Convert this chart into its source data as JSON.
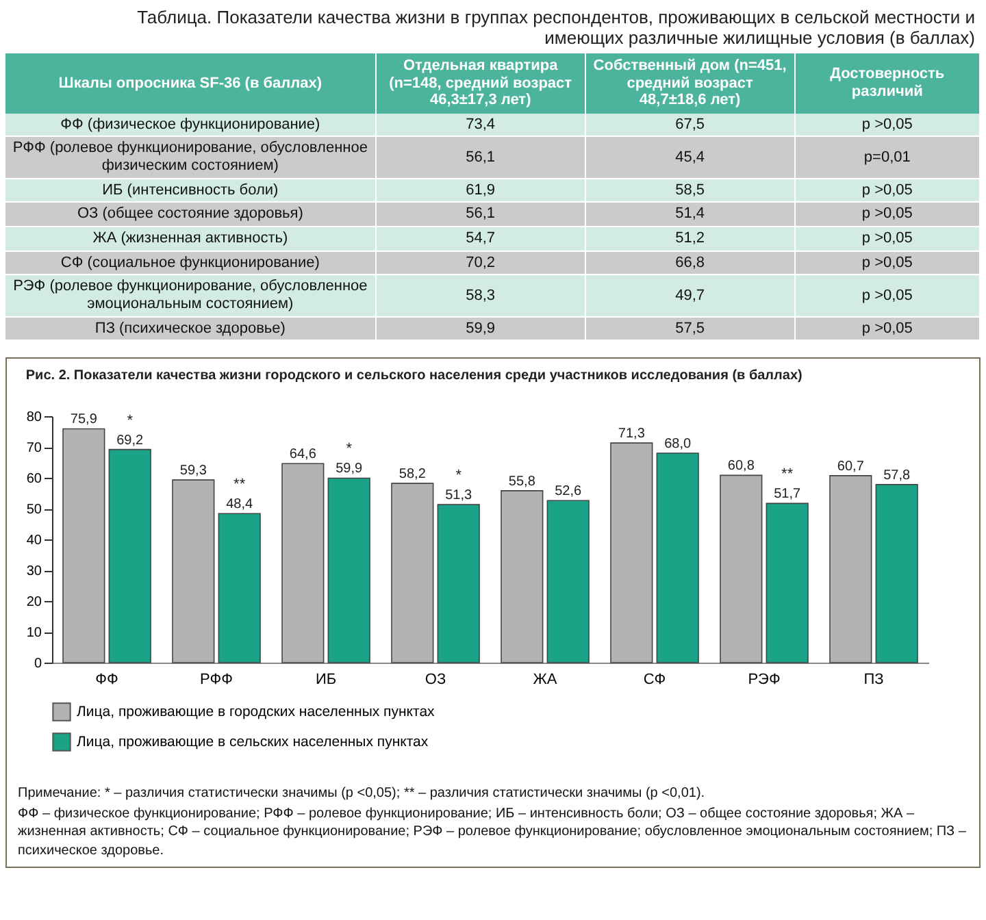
{
  "chart_data": [
    {
      "type": "other",
      "title": "Таблица. Показатели качества жизни в группах респондентов, проживающих в сельской местности и имеющих различные жилищные условия (в баллах)",
      "categories": [
        "Шкалы опросника SF-36 (в баллах)",
        "Отдельная квартира (n=148, средний возраст 46,3±17,3 лет)",
        "Собственный дом (n=451, средний возраст 48,7±18,6 лет)",
        "Достоверность различий"
      ],
      "cell_labels": [
        [
          "ФФ (физическое функционирование)",
          "73,4",
          "67,5",
          "p >0,05"
        ],
        [
          "РФФ (ролевое функционирование, обусловленное физическим состоянием)",
          "56,1",
          "45,4",
          "p=0,01"
        ],
        [
          "ИБ (интенсивность боли)",
          "61,9",
          "58,5",
          "p >0,05"
        ],
        [
          "ОЗ (общее состояние здоровья)",
          "56,1",
          "51,4",
          "p >0,05"
        ],
        [
          "ЖА (жизненная активность)",
          "54,7",
          "51,2",
          "p >0,05"
        ],
        [
          "СФ (социальное функционирование)",
          "70,2",
          "66,8",
          "p >0,05"
        ],
        [
          "РЭФ (ролевое функционирование, обусловленное эмоциональным состоянием)",
          "58,3",
          "49,7",
          "p >0,05"
        ],
        [
          "ПЗ (психическое здоровье)",
          "59,9",
          "57,5",
          "p >0,05"
        ]
      ]
    },
    {
      "type": "bar",
      "title": "Рис. 2. Показатели качества жизни городского и сельского населения среди участников исследования (в баллах)",
      "categories": [
        "ФФ",
        "РФФ",
        "ИБ",
        "ОЗ",
        "ЖА",
        "СФ",
        "РЭФ",
        "ПЗ"
      ],
      "series": [
        {
          "name": "Лица, проживающие в городских населенных пунктах",
          "color": "#b3b3b3",
          "values": [
            75.9,
            59.3,
            64.6,
            58.2,
            55.8,
            71.3,
            60.8,
            60.7
          ],
          "value_labels": [
            "75,9",
            "59,3",
            "64,6",
            "58,2",
            "55,8",
            "71,3",
            "60,8",
            "60,7"
          ]
        },
        {
          "name": "Лица, проживающие в сельских населенных пунктах",
          "color": "#1ba387",
          "values": [
            69.2,
            48.4,
            59.9,
            51.3,
            52.6,
            68.0,
            51.7,
            57.8
          ],
          "value_labels": [
            "69,2",
            "48,4",
            "59,9",
            "51,3",
            "52,6",
            "68,0",
            "51,7",
            "57,8"
          ]
        }
      ],
      "ylim": [
        0,
        80
      ],
      "yticks": [
        0,
        10,
        20,
        30,
        40,
        50,
        60,
        70,
        80
      ],
      "grid": false,
      "legend": "bottom",
      "annotations": [
        {
          "text": "*",
          "x": "ФФ",
          "y": 69.2
        },
        {
          "text": "**",
          "x": "РФФ",
          "y": 48.4
        },
        {
          "text": "*",
          "x": "ИБ",
          "y": 59.9
        },
        {
          "text": "*",
          "x": "ОЗ",
          "y": 51.3
        },
        {
          "text": "**",
          "x": "РЭФ",
          "y": 51.7
        },
        "Примечание: * – различия статистически значимы (p <0,05); ** – различия статистически значимы (p <0,01).",
        "ФФ – физическое функционирование; РФФ – ролевое функционирование; ИБ – интенсивность боли; ОЗ – общее состояние здоровья; ЖА – жизненная активность; СФ – социальное функционирование; РЭФ – ролевое функционирование; обусловленное эмоциональным состоянием; ПЗ – психическое здоровье."
      ]
    }
  ]
}
